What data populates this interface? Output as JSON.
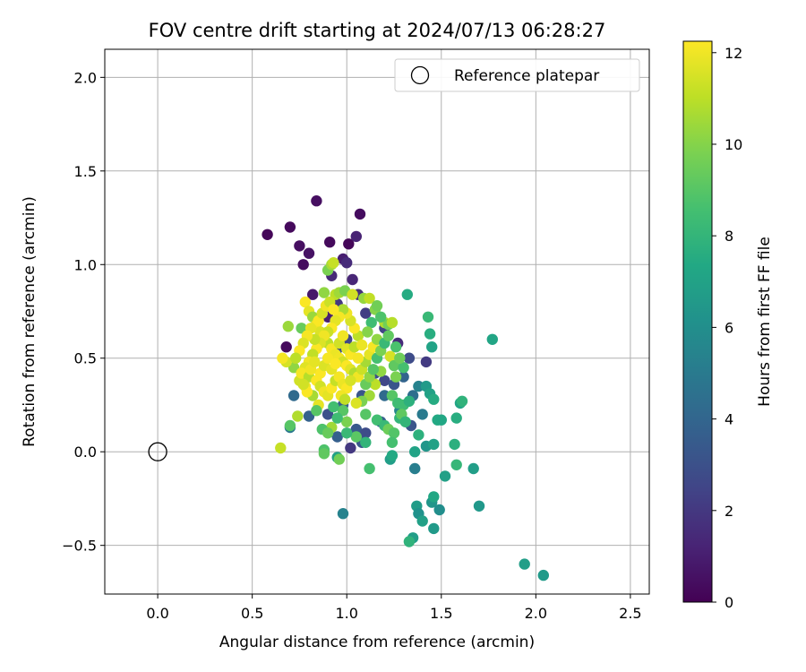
{
  "chart_data": {
    "type": "scatter",
    "title": "FOV centre drift starting at 2024/07/13 06:28:27",
    "xlabel": "Angular distance from reference (arcmin)",
    "ylabel": "Rotation from reference (arcmin)",
    "xlim": [
      -0.28,
      2.6
    ],
    "ylim": [
      -0.76,
      2.15
    ],
    "xticks": [
      0.0,
      0.5,
      1.0,
      1.5,
      2.0,
      2.5
    ],
    "xtick_labels": [
      "0.0",
      "0.5",
      "1.0",
      "1.5",
      "2.0",
      "2.5"
    ],
    "yticks": [
      -0.5,
      0.0,
      0.5,
      1.0,
      1.5,
      2.0
    ],
    "ytick_labels": [
      "−0.5",
      "0.0",
      "0.5",
      "1.0",
      "1.5",
      "2.0"
    ],
    "grid": true,
    "legend": {
      "position": "top-right",
      "label": "Reference platepar"
    },
    "reference_point": {
      "x": 0.0,
      "y": 0.0,
      "marker": "hollow-circle"
    },
    "colorbar": {
      "label": "Hours from first FF file",
      "colormap": "viridis",
      "range": [
        0,
        12.25
      ],
      "ticks": [
        0,
        2,
        4,
        6,
        8,
        10,
        12
      ],
      "tick_labels": [
        "0",
        "2",
        "4",
        "6",
        "8",
        "10",
        "12"
      ]
    },
    "points": [
      {
        "x": 0.58,
        "y": 1.16,
        "c": 0.2
      },
      {
        "x": 0.7,
        "y": 1.2,
        "c": 0.3
      },
      {
        "x": 0.75,
        "y": 1.1,
        "c": 0.5
      },
      {
        "x": 0.77,
        "y": 1.0,
        "c": 0.4
      },
      {
        "x": 0.8,
        "y": 1.06,
        "c": 0.6
      },
      {
        "x": 0.84,
        "y": 1.34,
        "c": 0.5
      },
      {
        "x": 0.91,
        "y": 1.12,
        "c": 0.3
      },
      {
        "x": 0.98,
        "y": 1.03,
        "c": 1.0
      },
      {
        "x": 1.01,
        "y": 1.11,
        "c": 0.2
      },
      {
        "x": 1.05,
        "y": 1.15,
        "c": 1.2
      },
      {
        "x": 1.07,
        "y": 1.27,
        "c": 0.4
      },
      {
        "x": 1.0,
        "y": 1.01,
        "c": 1.5
      },
      {
        "x": 1.03,
        "y": 0.92,
        "c": 1.3
      },
      {
        "x": 0.82,
        "y": 0.84,
        "c": 0.8
      },
      {
        "x": 1.06,
        "y": 0.84,
        "c": 1.7
      },
      {
        "x": 0.92,
        "y": 0.94,
        "c": 1.4
      },
      {
        "x": 0.68,
        "y": 0.56,
        "c": 0.3
      },
      {
        "x": 0.9,
        "y": 0.72,
        "c": 1.1
      },
      {
        "x": 0.95,
        "y": 0.79,
        "c": 2.0
      },
      {
        "x": 1.1,
        "y": 0.74,
        "c": 2.2
      },
      {
        "x": 1.2,
        "y": 0.66,
        "c": 2.4
      },
      {
        "x": 1.27,
        "y": 0.58,
        "c": 1.5
      },
      {
        "x": 1.33,
        "y": 0.5,
        "c": 2.8
      },
      {
        "x": 1.42,
        "y": 0.48,
        "c": 2.1
      },
      {
        "x": 1.0,
        "y": 0.6,
        "c": 2.6
      },
      {
        "x": 0.95,
        "y": 0.55,
        "c": 2.9
      },
      {
        "x": 1.15,
        "y": 0.42,
        "c": 3.0
      },
      {
        "x": 1.2,
        "y": 0.38,
        "c": 2.6
      },
      {
        "x": 1.08,
        "y": 0.3,
        "c": 3.2
      },
      {
        "x": 0.98,
        "y": 0.25,
        "c": 3.6
      },
      {
        "x": 0.9,
        "y": 0.2,
        "c": 3.0
      },
      {
        "x": 0.8,
        "y": 0.19,
        "c": 3.8
      },
      {
        "x": 0.72,
        "y": 0.3,
        "c": 4.2
      },
      {
        "x": 0.7,
        "y": 0.13,
        "c": 4.9
      },
      {
        "x": 1.05,
        "y": 0.12,
        "c": 3.4
      },
      {
        "x": 1.1,
        "y": 0.1,
        "c": 2.8
      },
      {
        "x": 0.95,
        "y": 0.08,
        "c": 3.7
      },
      {
        "x": 1.02,
        "y": 0.02,
        "c": 2.0
      },
      {
        "x": 1.08,
        "y": 0.05,
        "c": 3.3
      },
      {
        "x": 1.18,
        "y": 0.16,
        "c": 3.6
      },
      {
        "x": 1.2,
        "y": 0.3,
        "c": 4.2
      },
      {
        "x": 1.25,
        "y": 0.36,
        "c": 3.2
      },
      {
        "x": 1.3,
        "y": 0.4,
        "c": 3.9
      },
      {
        "x": 1.35,
        "y": 0.3,
        "c": 4.4
      },
      {
        "x": 1.38,
        "y": 0.35,
        "c": 5.4
      },
      {
        "x": 1.4,
        "y": 0.2,
        "c": 5.0
      },
      {
        "x": 1.28,
        "y": 0.22,
        "c": 5.6
      },
      {
        "x": 1.34,
        "y": 0.14,
        "c": 3.2
      },
      {
        "x": 1.36,
        "y": -0.09,
        "c": 5.2
      },
      {
        "x": 0.98,
        "y": -0.33,
        "c": 5.4
      },
      {
        "x": 1.42,
        "y": 0.03,
        "c": 6.4
      },
      {
        "x": 1.42,
        "y": 0.35,
        "c": 6.6
      },
      {
        "x": 1.44,
        "y": 0.31,
        "c": 7.0
      },
      {
        "x": 1.46,
        "y": 0.28,
        "c": 7.5
      },
      {
        "x": 1.43,
        "y": 0.72,
        "c": 8.2
      },
      {
        "x": 1.44,
        "y": 0.63,
        "c": 7.6
      },
      {
        "x": 1.45,
        "y": 0.56,
        "c": 7.1
      },
      {
        "x": 1.32,
        "y": 0.84,
        "c": 7.5
      },
      {
        "x": 1.48,
        "y": 0.17,
        "c": 7.4
      },
      {
        "x": 1.5,
        "y": 0.17,
        "c": 7.3
      },
      {
        "x": 1.46,
        "y": 0.04,
        "c": 7.0
      },
      {
        "x": 1.38,
        "y": 0.09,
        "c": 7.8
      },
      {
        "x": 1.36,
        "y": 0.0,
        "c": 7.1
      },
      {
        "x": 1.58,
        "y": 0.18,
        "c": 7.6
      },
      {
        "x": 1.6,
        "y": 0.26,
        "c": 7.2
      },
      {
        "x": 1.61,
        "y": 0.27,
        "c": 7.9
      },
      {
        "x": 1.57,
        "y": 0.04,
        "c": 7.7
      },
      {
        "x": 1.58,
        "y": -0.07,
        "c": 8.1
      },
      {
        "x": 1.67,
        "y": -0.09,
        "c": 6.8
      },
      {
        "x": 1.52,
        "y": -0.13,
        "c": 6.9
      },
      {
        "x": 1.7,
        "y": -0.29,
        "c": 6.5
      },
      {
        "x": 1.77,
        "y": 0.6,
        "c": 7.2
      },
      {
        "x": 1.37,
        "y": -0.29,
        "c": 6.7
      },
      {
        "x": 1.38,
        "y": -0.33,
        "c": 6.2
      },
      {
        "x": 1.4,
        "y": -0.37,
        "c": 6.9
      },
      {
        "x": 1.45,
        "y": -0.27,
        "c": 6.4
      },
      {
        "x": 1.46,
        "y": -0.24,
        "c": 7.3
      },
      {
        "x": 1.49,
        "y": -0.31,
        "c": 6.0
      },
      {
        "x": 1.46,
        "y": -0.41,
        "c": 6.6
      },
      {
        "x": 1.35,
        "y": -0.46,
        "c": 6.8
      },
      {
        "x": 1.33,
        "y": -0.48,
        "c": 7.9
      },
      {
        "x": 1.94,
        "y": -0.6,
        "c": 6.8
      },
      {
        "x": 2.04,
        "y": -0.66,
        "c": 6.6
      },
      {
        "x": 1.23,
        "y": -0.04,
        "c": 6.8
      },
      {
        "x": 1.24,
        "y": -0.02,
        "c": 7.4
      },
      {
        "x": 1.12,
        "y": -0.09,
        "c": 8.6
      },
      {
        "x": 0.95,
        "y": -0.03,
        "c": 7.0
      },
      {
        "x": 0.88,
        "y": 0.01,
        "c": 8.8
      },
      {
        "x": 0.88,
        "y": -0.01,
        "c": 9.2
      },
      {
        "x": 0.96,
        "y": -0.04,
        "c": 9.6
      },
      {
        "x": 0.65,
        "y": 0.02,
        "c": 11.2
      },
      {
        "x": 0.7,
        "y": 0.14,
        "c": 9.0
      },
      {
        "x": 0.74,
        "y": 0.19,
        "c": 10.8
      },
      {
        "x": 0.92,
        "y": 0.13,
        "c": 10.5
      },
      {
        "x": 1.0,
        "y": 0.16,
        "c": 9.8
      },
      {
        "x": 1.1,
        "y": 0.2,
        "c": 9.0
      },
      {
        "x": 1.16,
        "y": 0.17,
        "c": 8.5
      },
      {
        "x": 1.2,
        "y": 0.14,
        "c": 8.2
      },
      {
        "x": 1.22,
        "y": 0.12,
        "c": 9.5
      },
      {
        "x": 1.25,
        "y": 0.1,
        "c": 8.9
      },
      {
        "x": 1.28,
        "y": 0.18,
        "c": 8.0
      },
      {
        "x": 1.3,
        "y": 0.25,
        "c": 8.4
      },
      {
        "x": 1.33,
        "y": 0.27,
        "c": 7.8
      },
      {
        "x": 1.24,
        "y": 0.05,
        "c": 8.6
      },
      {
        "x": 1.1,
        "y": 0.05,
        "c": 8.0
      },
      {
        "x": 1.05,
        "y": 0.08,
        "c": 9.1
      },
      {
        "x": 0.9,
        "y": 0.97,
        "c": 9.8
      },
      {
        "x": 0.92,
        "y": 1.0,
        "c": 10.6
      },
      {
        "x": 0.93,
        "y": 1.01,
        "c": 11.2
      },
      {
        "x": 0.88,
        "y": 0.85,
        "c": 10.2
      },
      {
        "x": 0.94,
        "y": 0.84,
        "c": 11.0
      },
      {
        "x": 0.96,
        "y": 0.85,
        "c": 10.5
      },
      {
        "x": 0.99,
        "y": 0.86,
        "c": 9.8
      },
      {
        "x": 1.03,
        "y": 0.84,
        "c": 11.4
      },
      {
        "x": 1.09,
        "y": 0.82,
        "c": 10.3
      },
      {
        "x": 1.12,
        "y": 0.82,
        "c": 11.1
      },
      {
        "x": 1.15,
        "y": 0.76,
        "c": 10.0
      },
      {
        "x": 1.2,
        "y": 0.69,
        "c": 10.8
      },
      {
        "x": 1.22,
        "y": 0.68,
        "c": 9.6
      },
      {
        "x": 1.24,
        "y": 0.69,
        "c": 10.9
      },
      {
        "x": 1.23,
        "y": 0.51,
        "c": 11.5
      },
      {
        "x": 1.25,
        "y": 0.46,
        "c": 9.2
      },
      {
        "x": 1.26,
        "y": 0.4,
        "c": 9.8
      },
      {
        "x": 1.3,
        "y": 0.45,
        "c": 8.6
      },
      {
        "x": 1.18,
        "y": 0.43,
        "c": 10.2
      },
      {
        "x": 1.15,
        "y": 0.36,
        "c": 11.0
      },
      {
        "x": 1.12,
        "y": 0.3,
        "c": 10.5
      },
      {
        "x": 1.08,
        "y": 0.27,
        "c": 9.8
      },
      {
        "x": 1.05,
        "y": 0.26,
        "c": 11.6
      },
      {
        "x": 0.98,
        "y": 0.22,
        "c": 9.0
      },
      {
        "x": 0.95,
        "y": 0.18,
        "c": 8.4
      },
      {
        "x": 0.85,
        "y": 0.25,
        "c": 11.8
      },
      {
        "x": 0.82,
        "y": 0.3,
        "c": 10.6
      },
      {
        "x": 0.78,
        "y": 0.35,
        "c": 12.0
      },
      {
        "x": 0.75,
        "y": 0.38,
        "c": 11.4
      },
      {
        "x": 0.72,
        "y": 0.45,
        "c": 10.2
      },
      {
        "x": 0.68,
        "y": 0.48,
        "c": 11.5
      },
      {
        "x": 0.66,
        "y": 0.5,
        "c": 12.1
      },
      {
        "x": 0.69,
        "y": 0.67,
        "c": 10.4
      },
      {
        "x": 0.76,
        "y": 0.66,
        "c": 9.4
      },
      {
        "x": 0.78,
        "y": 0.8,
        "c": 12.2
      },
      {
        "x": 0.8,
        "y": 0.75,
        "c": 11.8
      },
      {
        "x": 0.82,
        "y": 0.72,
        "c": 10.4
      },
      {
        "x": 0.84,
        "y": 0.68,
        "c": 12.0
      },
      {
        "x": 0.86,
        "y": 0.64,
        "c": 11.6
      },
      {
        "x": 0.88,
        "y": 0.6,
        "c": 12.2
      },
      {
        "x": 0.9,
        "y": 0.58,
        "c": 11.0
      },
      {
        "x": 0.92,
        "y": 0.55,
        "c": 12.1
      },
      {
        "x": 0.94,
        "y": 0.52,
        "c": 11.9
      },
      {
        "x": 0.96,
        "y": 0.5,
        "c": 12.0
      },
      {
        "x": 0.98,
        "y": 0.48,
        "c": 11.4
      },
      {
        "x": 1.0,
        "y": 0.46,
        "c": 12.2
      },
      {
        "x": 1.02,
        "y": 0.44,
        "c": 11.7
      },
      {
        "x": 1.04,
        "y": 0.42,
        "c": 10.8
      },
      {
        "x": 1.06,
        "y": 0.4,
        "c": 12.0
      },
      {
        "x": 1.08,
        "y": 0.44,
        "c": 11.3
      },
      {
        "x": 1.1,
        "y": 0.48,
        "c": 10.6
      },
      {
        "x": 1.12,
        "y": 0.52,
        "c": 11.8
      },
      {
        "x": 1.14,
        "y": 0.56,
        "c": 12.1
      },
      {
        "x": 1.16,
        "y": 0.6,
        "c": 10.2
      },
      {
        "x": 1.06,
        "y": 0.62,
        "c": 11.0
      },
      {
        "x": 1.04,
        "y": 0.66,
        "c": 12.2
      },
      {
        "x": 1.02,
        "y": 0.7,
        "c": 11.5
      },
      {
        "x": 1.0,
        "y": 0.74,
        "c": 12.0
      },
      {
        "x": 0.98,
        "y": 0.76,
        "c": 10.7
      },
      {
        "x": 0.96,
        "y": 0.72,
        "c": 12.1
      },
      {
        "x": 0.94,
        "y": 0.7,
        "c": 11.8
      },
      {
        "x": 0.92,
        "y": 0.66,
        "c": 12.2
      },
      {
        "x": 0.9,
        "y": 0.64,
        "c": 11.3
      },
      {
        "x": 0.88,
        "y": 0.62,
        "c": 12.0
      },
      {
        "x": 0.86,
        "y": 0.58,
        "c": 11.6
      },
      {
        "x": 0.84,
        "y": 0.55,
        "c": 12.2
      },
      {
        "x": 0.82,
        "y": 0.52,
        "c": 11.1
      },
      {
        "x": 0.8,
        "y": 0.48,
        "c": 12.0
      },
      {
        "x": 0.78,
        "y": 0.45,
        "c": 11.7
      },
      {
        "x": 0.76,
        "y": 0.42,
        "c": 12.1
      },
      {
        "x": 0.8,
        "y": 0.4,
        "c": 10.9
      },
      {
        "x": 0.84,
        "y": 0.38,
        "c": 12.2
      },
      {
        "x": 0.86,
        "y": 0.35,
        "c": 11.4
      },
      {
        "x": 0.88,
        "y": 0.32,
        "c": 12.0
      },
      {
        "x": 0.9,
        "y": 0.3,
        "c": 11.8
      },
      {
        "x": 0.92,
        "y": 0.34,
        "c": 12.2
      },
      {
        "x": 0.94,
        "y": 0.38,
        "c": 11.2
      },
      {
        "x": 0.96,
        "y": 0.4,
        "c": 12.1
      },
      {
        "x": 0.98,
        "y": 0.36,
        "c": 11.9
      },
      {
        "x": 1.0,
        "y": 0.34,
        "c": 12.2
      },
      {
        "x": 1.02,
        "y": 0.38,
        "c": 11.5
      },
      {
        "x": 0.97,
        "y": 0.3,
        "c": 12.0
      },
      {
        "x": 0.99,
        "y": 0.28,
        "c": 11.1
      },
      {
        "x": 0.86,
        "y": 0.42,
        "c": 12.2
      },
      {
        "x": 0.88,
        "y": 0.46,
        "c": 11.6
      },
      {
        "x": 0.9,
        "y": 0.5,
        "c": 12.1
      },
      {
        "x": 0.92,
        "y": 0.44,
        "c": 11.8
      },
      {
        "x": 0.94,
        "y": 0.47,
        "c": 12.2
      },
      {
        "x": 0.96,
        "y": 0.58,
        "c": 11.4
      },
      {
        "x": 0.98,
        "y": 0.62,
        "c": 12.0
      },
      {
        "x": 1.0,
        "y": 0.55,
        "c": 11.7
      },
      {
        "x": 1.02,
        "y": 0.52,
        "c": 12.2
      },
      {
        "x": 1.04,
        "y": 0.56,
        "c": 11.0
      },
      {
        "x": 1.06,
        "y": 0.5,
        "c": 12.1
      },
      {
        "x": 1.08,
        "y": 0.57,
        "c": 11.9
      },
      {
        "x": 0.83,
        "y": 0.6,
        "c": 11.2
      },
      {
        "x": 0.85,
        "y": 0.7,
        "c": 12.2
      },
      {
        "x": 0.87,
        "y": 0.74,
        "c": 11.5
      },
      {
        "x": 0.89,
        "y": 0.78,
        "c": 12.0
      },
      {
        "x": 0.91,
        "y": 0.8,
        "c": 11.3
      },
      {
        "x": 0.93,
        "y": 0.76,
        "c": 12.2
      },
      {
        "x": 0.81,
        "y": 0.66,
        "c": 11.8
      },
      {
        "x": 0.79,
        "y": 0.62,
        "c": 12.1
      },
      {
        "x": 0.77,
        "y": 0.58,
        "c": 11.6
      },
      {
        "x": 0.75,
        "y": 0.54,
        "c": 12.2
      },
      {
        "x": 0.73,
        "y": 0.5,
        "c": 11.0
      },
      {
        "x": 0.79,
        "y": 0.32,
        "c": 12.2
      },
      {
        "x": 0.77,
        "y": 0.36,
        "c": 11.4
      },
      {
        "x": 0.81,
        "y": 0.44,
        "c": 12.0
      },
      {
        "x": 0.83,
        "y": 0.48,
        "c": 11.8
      },
      {
        "x": 1.1,
        "y": 0.36,
        "c": 9.4
      },
      {
        "x": 1.12,
        "y": 0.4,
        "c": 10.2
      },
      {
        "x": 1.14,
        "y": 0.44,
        "c": 9.0
      },
      {
        "x": 1.16,
        "y": 0.5,
        "c": 8.6
      },
      {
        "x": 1.18,
        "y": 0.54,
        "c": 9.8
      },
      {
        "x": 1.2,
        "y": 0.58,
        "c": 8.2
      },
      {
        "x": 1.22,
        "y": 0.62,
        "c": 9.2
      },
      {
        "x": 1.18,
        "y": 0.72,
        "c": 8.8
      },
      {
        "x": 1.16,
        "y": 0.78,
        "c": 9.6
      },
      {
        "x": 1.13,
        "y": 0.69,
        "c": 8.4
      },
      {
        "x": 1.11,
        "y": 0.64,
        "c": 10.0
      },
      {
        "x": 1.24,
        "y": 0.3,
        "c": 9.0
      },
      {
        "x": 1.27,
        "y": 0.26,
        "c": 8.4
      },
      {
        "x": 1.29,
        "y": 0.2,
        "c": 9.2
      },
      {
        "x": 1.31,
        "y": 0.16,
        "c": 8.0
      },
      {
        "x": 1.26,
        "y": 0.56,
        "c": 8.7
      },
      {
        "x": 1.28,
        "y": 0.5,
        "c": 9.5
      },
      {
        "x": 0.87,
        "y": 0.12,
        "c": 8.8
      },
      {
        "x": 0.9,
        "y": 0.1,
        "c": 9.4
      },
      {
        "x": 1.0,
        "y": 0.1,
        "c": 8.2
      },
      {
        "x": 0.84,
        "y": 0.22,
        "c": 9.0
      },
      {
        "x": 0.93,
        "y": 0.24,
        "c": 8.5
      }
    ]
  }
}
